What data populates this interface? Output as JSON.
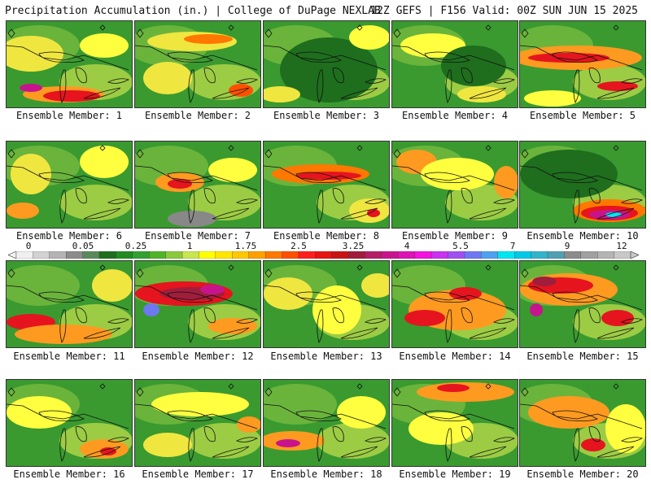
{
  "header": {
    "left": "Precipitation Accumulation (in.) | College of DuPage NEXLAB",
    "right": "12Z GEFS | F156 Valid: 00Z SUN JUN 15 2025"
  },
  "colorbar": {
    "tick_labels": [
      "0",
      "0.05",
      "0.25",
      "1",
      "1.75",
      "2.5",
      "3.25",
      "4",
      "5.5",
      "7",
      "9",
      "12"
    ],
    "colors": [
      "#f0f0f0",
      "#d2d2d2",
      "#b4b4b4",
      "#8c8c8c",
      "#5a8a5a",
      "#1e6e1e",
      "#228b22",
      "#32a032",
      "#50b428",
      "#8cc83c",
      "#c8e650",
      "#ffff00",
      "#ffe600",
      "#ffc800",
      "#ffa000",
      "#ff7800",
      "#ff5000",
      "#ff1e1e",
      "#e61414",
      "#c81414",
      "#a01e3c",
      "#b41e64",
      "#c8148c",
      "#dc14b4",
      "#f014dc",
      "#c832f0",
      "#a050f0",
      "#6e78f0",
      "#50a0f0",
      "#00e6f0",
      "#00c8e6",
      "#32b4c8",
      "#50a0b4",
      "#8c8c8c",
      "#a0a0a0",
      "#b4b4b4",
      "#c8c8c8"
    ]
  },
  "members": [
    {
      "label": "Ensemble Member: 1"
    },
    {
      "label": "Ensemble Member: 2"
    },
    {
      "label": "Ensemble Member: 3"
    },
    {
      "label": "Ensemble Member: 4"
    },
    {
      "label": "Ensemble Member: 5"
    },
    {
      "label": "Ensemble Member: 6"
    },
    {
      "label": "Ensemble Member: 7"
    },
    {
      "label": "Ensemble Member: 8"
    },
    {
      "label": "Ensemble Member: 9"
    },
    {
      "label": "Ensemble Member: 10"
    },
    {
      "label": "Ensemble Member: 11"
    },
    {
      "label": "Ensemble Member: 12"
    },
    {
      "label": "Ensemble Member: 13"
    },
    {
      "label": "Ensemble Member: 14"
    },
    {
      "label": "Ensemble Member: 15"
    },
    {
      "label": "Ensemble Member: 16"
    },
    {
      "label": "Ensemble Member: 17"
    },
    {
      "label": "Ensemble Member: 18"
    },
    {
      "label": "Ensemble Member: 19"
    },
    {
      "label": "Ensemble Member: 20"
    }
  ]
}
